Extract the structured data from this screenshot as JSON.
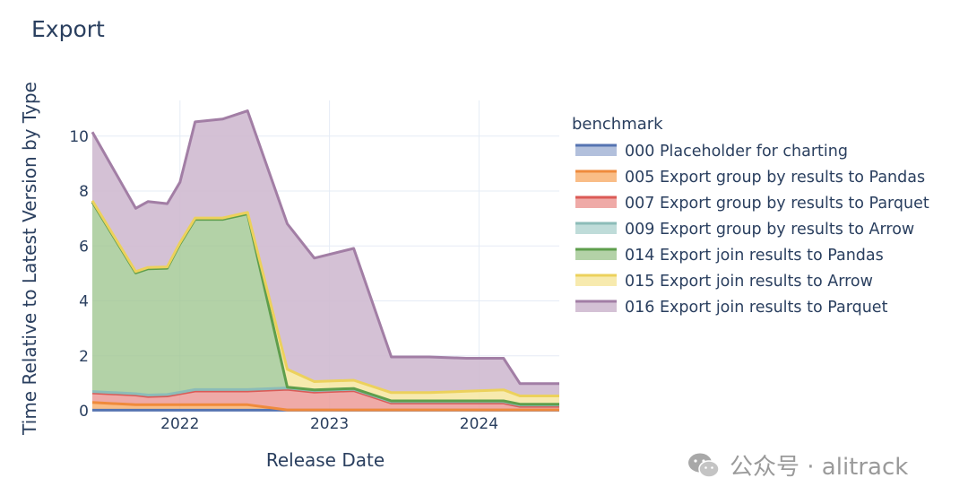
{
  "title": "Export",
  "watermark": {
    "text": "公众号 · alitrack",
    "icon": "wechat-icon"
  },
  "chart_data": {
    "type": "area",
    "stacked": true,
    "xlabel": "Release Date",
    "ylabel": "Time Relative to Latest Version by Type",
    "xlim": [
      "2021-06-01",
      "2024-07-15"
    ],
    "ylim": [
      0,
      11.3
    ],
    "x_ticks": [
      "2022",
      "2023",
      "2024"
    ],
    "y_ticks": [
      0,
      2,
      4,
      6,
      8,
      10
    ],
    "grid": true,
    "legend_title": "benchmark",
    "legend_position": "right",
    "x": [
      "2021-06-01",
      "2021-09-15",
      "2021-10-15",
      "2021-12-01",
      "2022-01-01",
      "2022-02-07",
      "2022-04-15",
      "2022-06-15",
      "2022-09-20",
      "2022-11-25",
      "2023-03-01",
      "2023-06-01",
      "2023-09-01",
      "2023-12-01",
      "2024-03-01",
      "2024-04-10",
      "2024-07-15"
    ],
    "series": [
      {
        "name": "000 Placeholder for charting",
        "line_color": "#5473b1",
        "fill_color": "rgba(84,115,177,0.45)",
        "values": [
          0.02,
          0.02,
          0.02,
          0.02,
          0.02,
          0.02,
          0.02,
          0.02,
          0.02,
          0.02,
          0.02,
          0.02,
          0.02,
          0.02,
          0.02,
          0.02,
          0.02
        ]
      },
      {
        "name": "005 Export group by results to Pandas",
        "line_color": "#ef8a3c",
        "fill_color": "rgba(247,172,105,0.8)",
        "values": [
          0.28,
          0.2,
          0.2,
          0.2,
          0.2,
          0.2,
          0.2,
          0.2,
          0.01,
          0.01,
          0.01,
          0.01,
          0.01,
          0.01,
          0.01,
          0.01,
          0.01
        ]
      },
      {
        "name": "007 Export group by results to Parquet",
        "line_color": "#db5a56",
        "fill_color": "rgba(236,155,152,0.85)",
        "values": [
          0.35,
          0.35,
          0.3,
          0.32,
          0.4,
          0.5,
          0.5,
          0.5,
          0.75,
          0.65,
          0.7,
          0.25,
          0.25,
          0.25,
          0.25,
          0.13,
          0.13
        ]
      },
      {
        "name": "009 Export group by results to Arrow",
        "line_color": "#8cbcb8",
        "fill_color": "rgba(180,214,210,0.85)",
        "values": [
          0.05,
          0.05,
          0.05,
          0.05,
          0.05,
          0.05,
          0.05,
          0.05,
          0.05,
          0.05,
          0.05,
          0.05,
          0.05,
          0.05,
          0.05,
          0.05,
          0.05
        ]
      },
      {
        "name": "014 Export join results to Pandas",
        "line_color": "#5e9e4c",
        "fill_color": "rgba(160,199,145,0.8)",
        "values": [
          6.9,
          4.4,
          4.6,
          4.6,
          5.4,
          6.2,
          6.2,
          6.4,
          0.03,
          0.03,
          0.03,
          0.03,
          0.03,
          0.03,
          0.03,
          0.03,
          0.03
        ]
      },
      {
        "name": "015 Export join results to Arrow",
        "line_color": "#ecd15c",
        "fill_color": "rgba(246,230,160,0.85)",
        "values": [
          0.05,
          0.05,
          0.05,
          0.05,
          0.05,
          0.05,
          0.05,
          0.05,
          0.65,
          0.3,
          0.3,
          0.3,
          0.3,
          0.35,
          0.4,
          0.3,
          0.3
        ]
      },
      {
        "name": "016 Export join results to Parquet",
        "line_color": "#a27ea5",
        "fill_color": "rgba(207,186,208,0.9)",
        "values": [
          2.5,
          2.3,
          2.4,
          2.3,
          2.2,
          3.5,
          3.6,
          3.7,
          5.3,
          4.5,
          4.8,
          1.3,
          1.3,
          1.2,
          1.15,
          0.45,
          0.45
        ]
      }
    ]
  }
}
